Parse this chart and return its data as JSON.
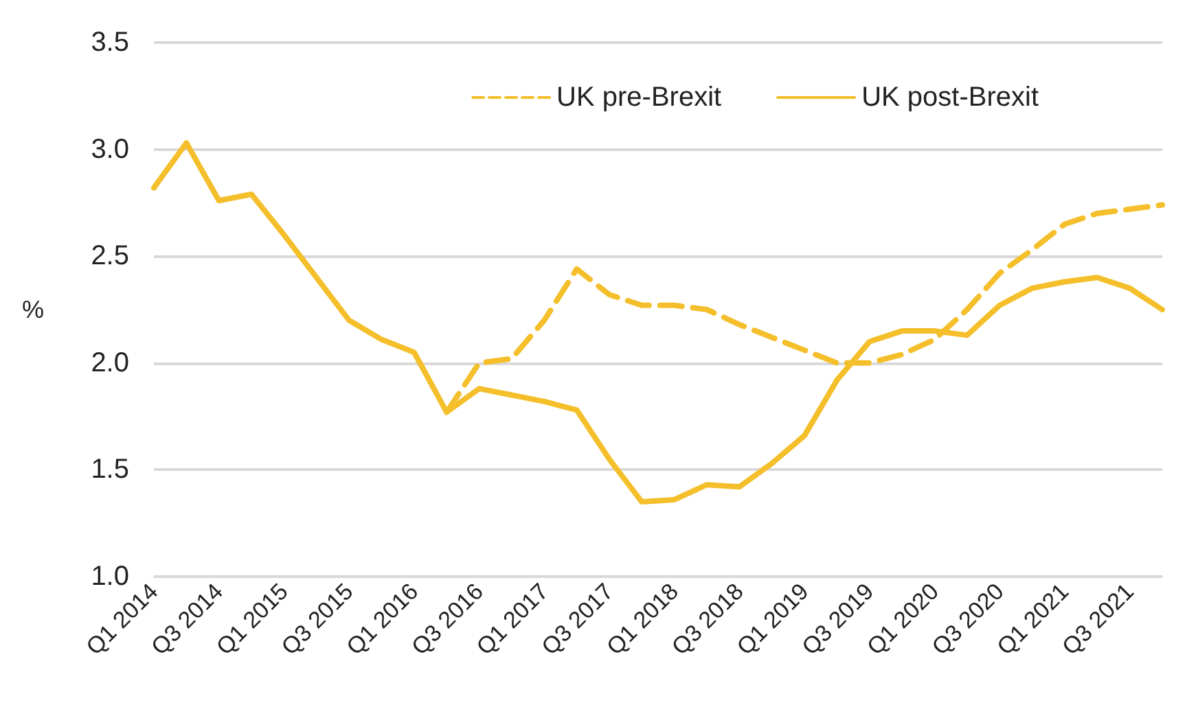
{
  "chart_data": {
    "type": "line",
    "ylabel": "%",
    "categories": [
      "Q1 2014",
      null,
      "Q3 2014",
      null,
      "Q1 2015",
      null,
      "Q3 2015",
      null,
      "Q1 2016",
      null,
      "Q3 2016",
      null,
      "Q1 2017",
      null,
      "Q3 2017",
      null,
      "Q1 2018",
      null,
      "Q3 2018",
      null,
      "Q1 2019",
      null,
      "Q3 2019",
      null,
      "Q1 2020",
      null,
      "Q3 2020",
      null,
      "Q1 2021",
      null,
      "Q3 2021",
      null
    ],
    "series": [
      {
        "name": "UK pre-Brexit",
        "color": "#f4bf2a",
        "line_style": "dashed",
        "values": [
          null,
          null,
          null,
          null,
          null,
          null,
          null,
          null,
          null,
          1.77,
          2.0,
          2.02,
          2.2,
          2.44,
          2.32,
          2.27,
          2.27,
          2.25,
          2.18,
          2.12,
          2.06,
          2.0,
          2.0,
          2.04,
          2.11,
          2.25,
          2.42,
          2.53,
          2.65,
          2.7,
          2.72,
          2.74
        ]
      },
      {
        "name": "UK post-Brexit",
        "color": "#f4bf2a",
        "line_style": "solid",
        "values": [
          2.82,
          3.03,
          2.76,
          2.79,
          2.6,
          2.4,
          2.2,
          2.11,
          2.05,
          1.77,
          1.88,
          1.85,
          1.82,
          1.78,
          1.55,
          1.35,
          1.36,
          1.43,
          1.42,
          1.53,
          1.66,
          1.92,
          2.1,
          2.15,
          2.15,
          2.13,
          2.27,
          2.35,
          2.38,
          2.4,
          2.35,
          2.25
        ]
      }
    ],
    "ylim": [
      1.0,
      3.5
    ],
    "yticks": [
      {
        "value": 1,
        "label": "1.0"
      },
      {
        "value": 1.5,
        "label": "1.5"
      },
      {
        "value": 2,
        "label": "2.0"
      },
      {
        "value": 2.5,
        "label": "2.5"
      },
      {
        "value": 3,
        "label": "3.0"
      },
      {
        "value": 3.5,
        "label": "3.5"
      }
    ],
    "grid": "y",
    "legend": "top right",
    "marker": "none"
  }
}
